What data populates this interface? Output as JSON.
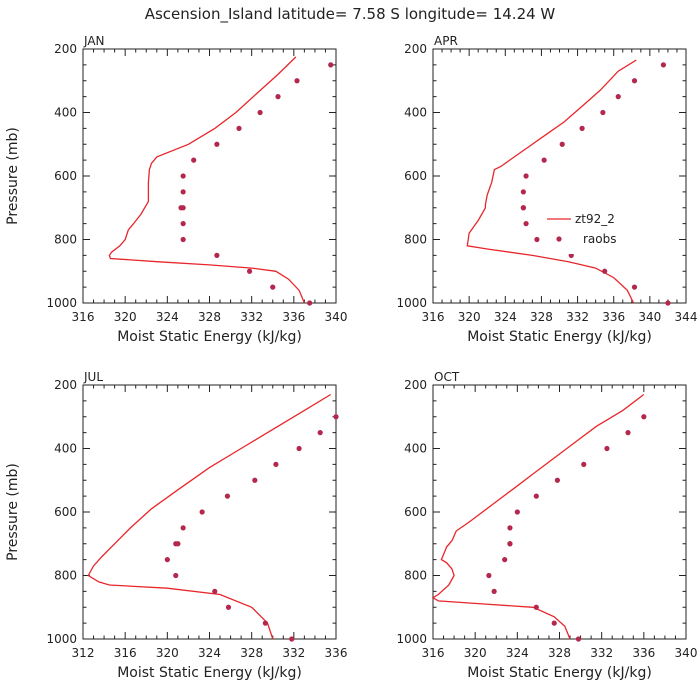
{
  "title": "Ascension_Island  latitude= 7.58 S longitude= 14.24 W",
  "colors": {
    "model": "#e8262b",
    "raobs": "#b3284c",
    "axis": "#222222"
  },
  "chart_data": [
    {
      "type": "line",
      "panel_label": "JAN",
      "xlabel": "Moist Static Energy (kJ/kg)",
      "ylabel": "Pressure (mb)",
      "xlim": [
        316,
        340
      ],
      "ylim": [
        1000,
        200
      ],
      "xticks": [
        316,
        320,
        324,
        328,
        332,
        336,
        340
      ],
      "yticks": [
        200,
        400,
        600,
        800,
        1000
      ],
      "legend": null,
      "series": [
        {
          "kind": "line",
          "x": [
            336.2,
            334.5,
            332.5,
            330.5,
            328.5,
            326,
            323,
            322.5,
            322.3,
            322.2,
            322.2,
            321.5,
            320.8,
            320.3,
            320,
            319.5,
            318.7,
            318.5,
            318.6,
            323,
            328,
            332,
            334.3,
            335.5,
            336.5,
            337
          ],
          "y": [
            225,
            280,
            340,
            400,
            450,
            500,
            540,
            560,
            580,
            620,
            680,
            720,
            750,
            770,
            800,
            820,
            840,
            850,
            860,
            870,
            880,
            890,
            900,
            925,
            960,
            1000
          ]
        },
        {
          "kind": "scatter",
          "x": [
            339.5,
            336.3,
            334.5,
            332.8,
            330.8,
            328.7,
            326.5,
            325.5,
            325.5,
            325.5,
            325.3,
            325.5,
            325.5,
            328.7,
            331.8,
            334,
            337.5
          ],
          "y": [
            250,
            300,
            350,
            400,
            450,
            500,
            550,
            600,
            650,
            700,
            700,
            750,
            800,
            850,
            900,
            950,
            1000
          ]
        }
      ]
    },
    {
      "type": "line",
      "panel_label": "APR",
      "xlabel": "Moist Static Energy (kJ/kg)",
      "ylabel": "",
      "xlim": [
        316,
        344
      ],
      "ylim": [
        1000,
        200
      ],
      "xticks": [
        316,
        320,
        324,
        328,
        332,
        336,
        340,
        344
      ],
      "yticks": [
        200,
        400,
        600,
        800,
        1000
      ],
      "legend": [
        "zt92_2",
        "raobs"
      ],
      "series": [
        {
          "kind": "line",
          "name": "zt92_2",
          "x": [
            338.5,
            336.5,
            334.5,
            332.5,
            330.5,
            328.5,
            326.5,
            325,
            323.5,
            322.8,
            322.5,
            322,
            321.8,
            321.8,
            321,
            320.5,
            320,
            319.8,
            322,
            327,
            331,
            334,
            336,
            337.5,
            338.2
          ],
          "y": [
            235,
            270,
            330,
            380,
            430,
            470,
            510,
            540,
            570,
            580,
            620,
            660,
            690,
            700,
            740,
            760,
            780,
            820,
            830,
            850,
            870,
            890,
            920,
            960,
            1000
          ]
        },
        {
          "kind": "scatter",
          "name": "raobs",
          "x": [
            341.5,
            338.3,
            336.5,
            334.8,
            332.5,
            330.3,
            328.3,
            326.3,
            326,
            326,
            326,
            326.3,
            327.5,
            331.3,
            335,
            338.3,
            342
          ],
          "y": [
            250,
            300,
            350,
            400,
            450,
            500,
            550,
            600,
            650,
            700,
            700,
            750,
            800,
            850,
            900,
            950,
            1000
          ]
        }
      ]
    },
    {
      "type": "line",
      "panel_label": "JUL",
      "xlabel": "Moist Static Energy (kJ/kg)",
      "ylabel": "Pressure (mb)",
      "xlim": [
        312,
        336
      ],
      "ylim": [
        1000,
        200
      ],
      "xticks": [
        312,
        316,
        320,
        324,
        328,
        332,
        336
      ],
      "yticks": [
        200,
        400,
        600,
        800,
        1000
      ],
      "legend": null,
      "series": [
        {
          "kind": "line",
          "x": [
            335.5,
            333,
            330,
            327,
            324,
            321,
            318.5,
            316.5,
            315,
            313.8,
            313,
            312.5,
            313.5,
            314.5,
            320,
            325,
            328,
            329.5,
            330
          ],
          "y": [
            230,
            280,
            340,
            400,
            460,
            530,
            590,
            650,
            700,
            740,
            770,
            800,
            820,
            830,
            840,
            860,
            900,
            950,
            1000
          ]
        },
        {
          "kind": "scatter",
          "x": [
            336,
            334.5,
            332.5,
            330.3,
            328.3,
            325.7,
            323.3,
            321.5,
            321,
            320.8,
            320,
            320.8,
            324.5,
            325.8,
            329.3,
            331.8
          ],
          "y": [
            300,
            350,
            400,
            450,
            500,
            550,
            600,
            650,
            700,
            700,
            750,
            800,
            850,
            900,
            950,
            1000
          ]
        }
      ]
    },
    {
      "type": "line",
      "panel_label": "OCT",
      "xlabel": "Moist Static Energy (kJ/kg)",
      "ylabel": "",
      "xlim": [
        316,
        340
      ],
      "ylim": [
        1000,
        200
      ],
      "xticks": [
        316,
        320,
        324,
        328,
        332,
        336,
        340
      ],
      "yticks": [
        200,
        400,
        600,
        800,
        1000
      ],
      "legend": null,
      "series": [
        {
          "kind": "line",
          "x": [
            336,
            334,
            331.5,
            329.5,
            327.5,
            325.5,
            323.5,
            321.5,
            319.5,
            318.2,
            317.8,
            317.3,
            316.8,
            317.3,
            317.8,
            318,
            317.5,
            316.5,
            316,
            316.5,
            321,
            325.5,
            327.5,
            328.5,
            329
          ],
          "y": [
            230,
            280,
            330,
            380,
            430,
            480,
            530,
            580,
            630,
            660,
            690,
            710,
            750,
            760,
            780,
            800,
            830,
            860,
            870,
            880,
            890,
            900,
            930,
            960,
            1000
          ]
        },
        {
          "kind": "scatter",
          "x": [
            336,
            334.5,
            332.5,
            330.3,
            327.8,
            325.8,
            324,
            323.3,
            323.3,
            323.3,
            322.8,
            321.3,
            321.8,
            325.8,
            327.5,
            329.8
          ],
          "y": [
            300,
            350,
            400,
            450,
            500,
            550,
            600,
            650,
            700,
            700,
            750,
            800,
            850,
            900,
            950,
            1000
          ]
        }
      ]
    }
  ]
}
